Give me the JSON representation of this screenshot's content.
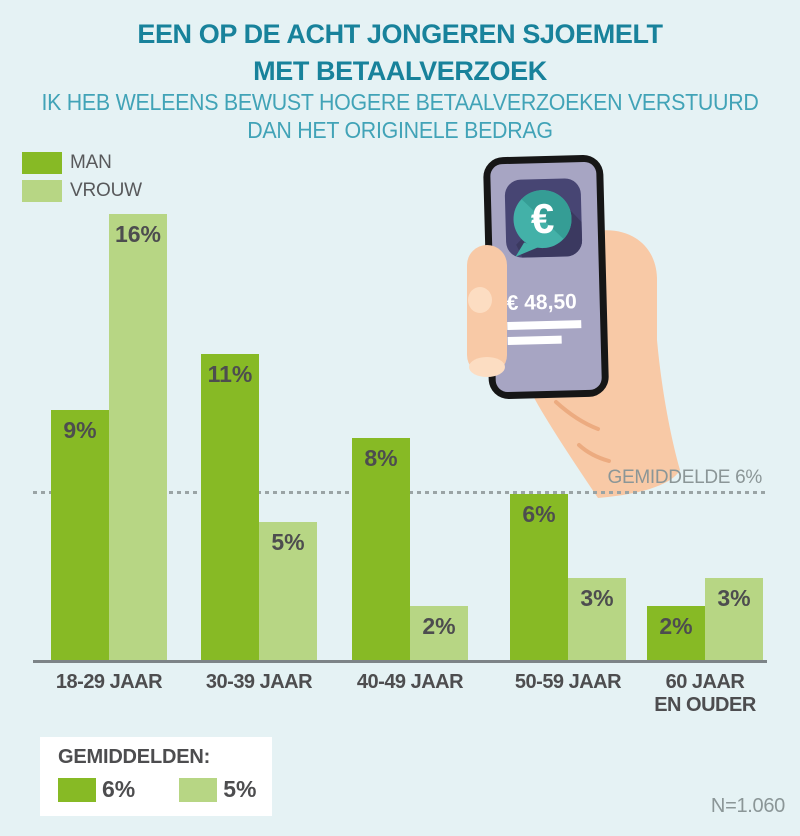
{
  "header": {
    "title_line1": "EEN OP DE ACHT JONGEREN SJOEMELT",
    "title_line2": "MET BETAALVERZOEK",
    "subtitle_line1": "IK HEB WELEENS BEWUST HOGERE BETAALVERZOEKEN VERSTUURD",
    "subtitle_line2": "DAN HET ORIGINELE BEDRAG"
  },
  "legend": {
    "items": [
      {
        "label": "MAN",
        "color": "#87ba25"
      },
      {
        "label": "VROUW",
        "color": "#b7d684"
      }
    ]
  },
  "phone": {
    "icon_symbol": "€",
    "amount": "€ 48,50"
  },
  "annotations": {
    "average_line_label": "GEMIDDELDE 6%"
  },
  "footer": {
    "averages_title": "GEMIDDELDEN:",
    "items": [
      {
        "label": "6%",
        "color": "#87ba25"
      },
      {
        "label": "5%",
        "color": "#b7d684"
      }
    ],
    "sample_size": "N=1.060"
  },
  "colors": {
    "background": "#e5f2f4",
    "title": "#18829b",
    "subtitle": "#41a3b7",
    "man_green": "#87ba25",
    "vrouw_green": "#b7d684",
    "dark_text": "#4d4d4f",
    "gray_text": "#8b9697",
    "axis": "#7d8487",
    "phone_screen": "#a7a5c3",
    "app_icon": "#474573",
    "bubble_teal": "#43b1a8",
    "skin": "#f8c9a6"
  },
  "chart_data": {
    "type": "bar",
    "title": "EEN OP DE ACHT JONGEREN SJOEMELT MET BETAALVERZOEK",
    "subtitle": "IK HEB WELEENS BEWUST HOGERE BETAALVERZOEKEN VERSTUURD DAN HET ORIGINELE BEDRAG",
    "categories": [
      "18-29 JAAR",
      "30-39 JAAR",
      "40-49 JAAR",
      "50-59 JAAR",
      "60 JAAR EN OUDER"
    ],
    "category_lines": [
      [
        "18-29 JAAR"
      ],
      [
        "30-39 JAAR"
      ],
      [
        "40-49 JAAR"
      ],
      [
        "50-59 JAAR"
      ],
      [
        "60 JAAR",
        "EN OUDER"
      ]
    ],
    "series": [
      {
        "name": "MAN",
        "color": "#87ba25",
        "values": [
          9,
          11,
          8,
          6,
          2
        ]
      },
      {
        "name": "VROUW",
        "color": "#b7d684",
        "values": [
          16,
          5,
          2,
          3,
          3
        ]
      }
    ],
    "unit": "%",
    "value_labels": true,
    "average_line": {
      "value": 6,
      "label": "GEMIDDELDE 6%"
    },
    "ylim": [
      0,
      17
    ],
    "grid": false,
    "legend_position": "top-left",
    "sample_size": "N=1.060"
  }
}
